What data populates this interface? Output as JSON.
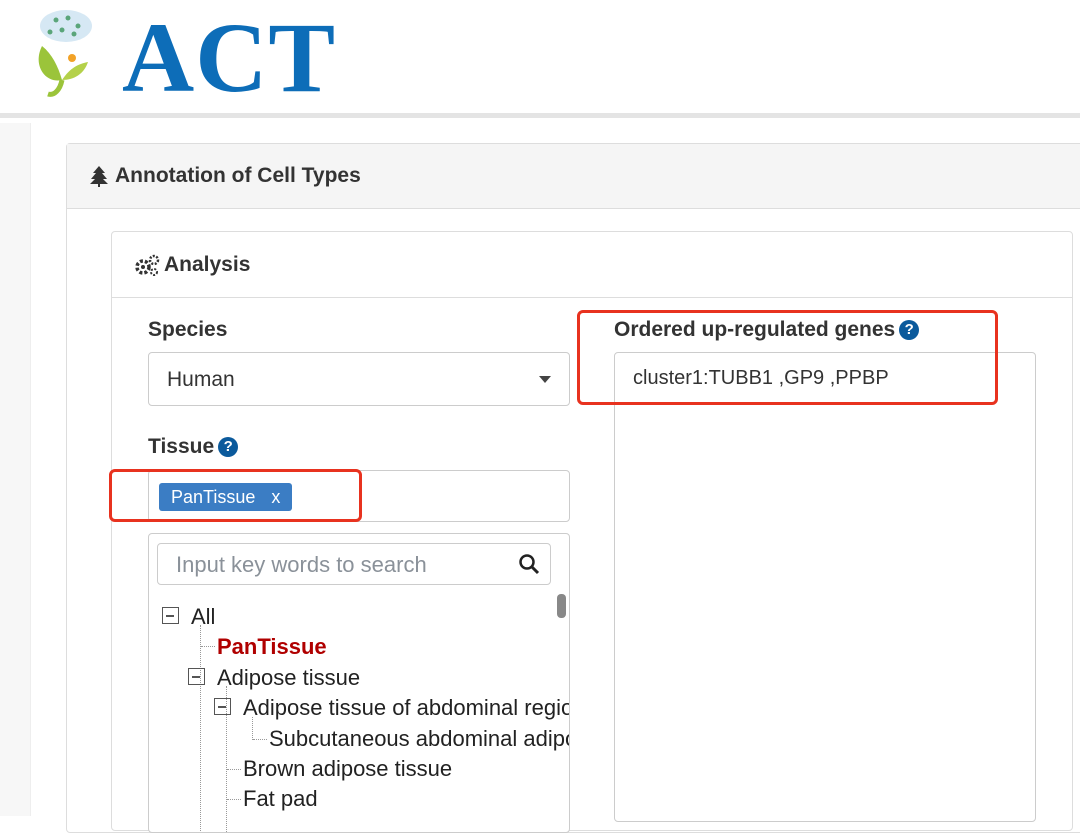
{
  "logo": {
    "text": "ACT"
  },
  "panel": {
    "icon": "tree-icon",
    "title": "Annotation of Cell Types"
  },
  "analysis": {
    "icon": "gears-icon",
    "title": "Analysis"
  },
  "species": {
    "label": "Species",
    "value": "Human"
  },
  "tissue": {
    "label": "Tissue",
    "help": "?",
    "tag": "PanTissue",
    "tag_remove": "x"
  },
  "tree": {
    "search_placeholder": "Input key words to search",
    "nodes": [
      "All",
      "PanTissue",
      "Adipose tissue",
      "Adipose tissue of abdominal region",
      "Subcutaneous abdominal adipose tissue",
      "Brown adipose tissue",
      "Fat pad"
    ]
  },
  "genes": {
    "label": "Ordered up-regulated genes",
    "help": "?",
    "value": "cluster1:TUBB1 ,GP9 ,PPBP"
  },
  "colors": {
    "brand": "#0d6db8",
    "tag": "#3b7dc4",
    "selected": "#b00000",
    "highlight": "#e8321f"
  }
}
